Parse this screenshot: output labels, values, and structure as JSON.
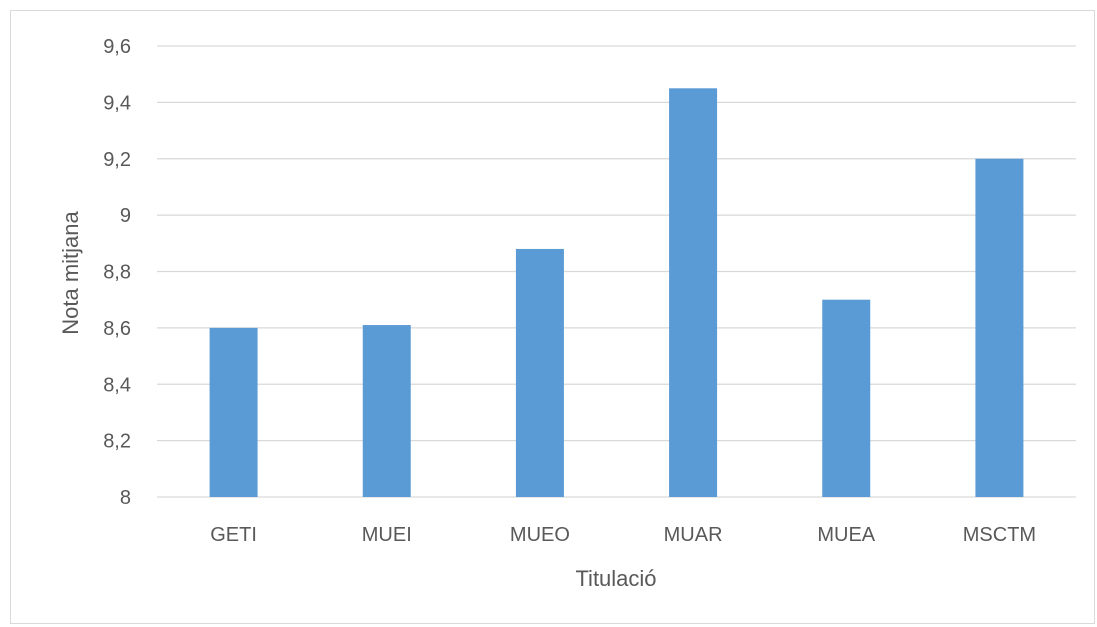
{
  "chart_data": {
    "type": "bar",
    "title": "",
    "xlabel": "Titulació",
    "ylabel": "Nota mitjana",
    "categories": [
      "GETI",
      "MUEI",
      "MUEO",
      "MUAR",
      "MUEA",
      "MSCTM"
    ],
    "values": [
      8.6,
      8.61,
      8.88,
      9.45,
      8.7,
      9.2
    ],
    "ylim": [
      8,
      9.6
    ],
    "yticks": [
      "8",
      "8,2",
      "8,4",
      "8,6",
      "8,8",
      "9",
      "9,2",
      "9,4",
      "9,6"
    ],
    "grid": true,
    "legend": "none",
    "colors": {
      "bar": "#5b9bd5",
      "grid": "#d9d9d9",
      "text": "#595959"
    }
  }
}
